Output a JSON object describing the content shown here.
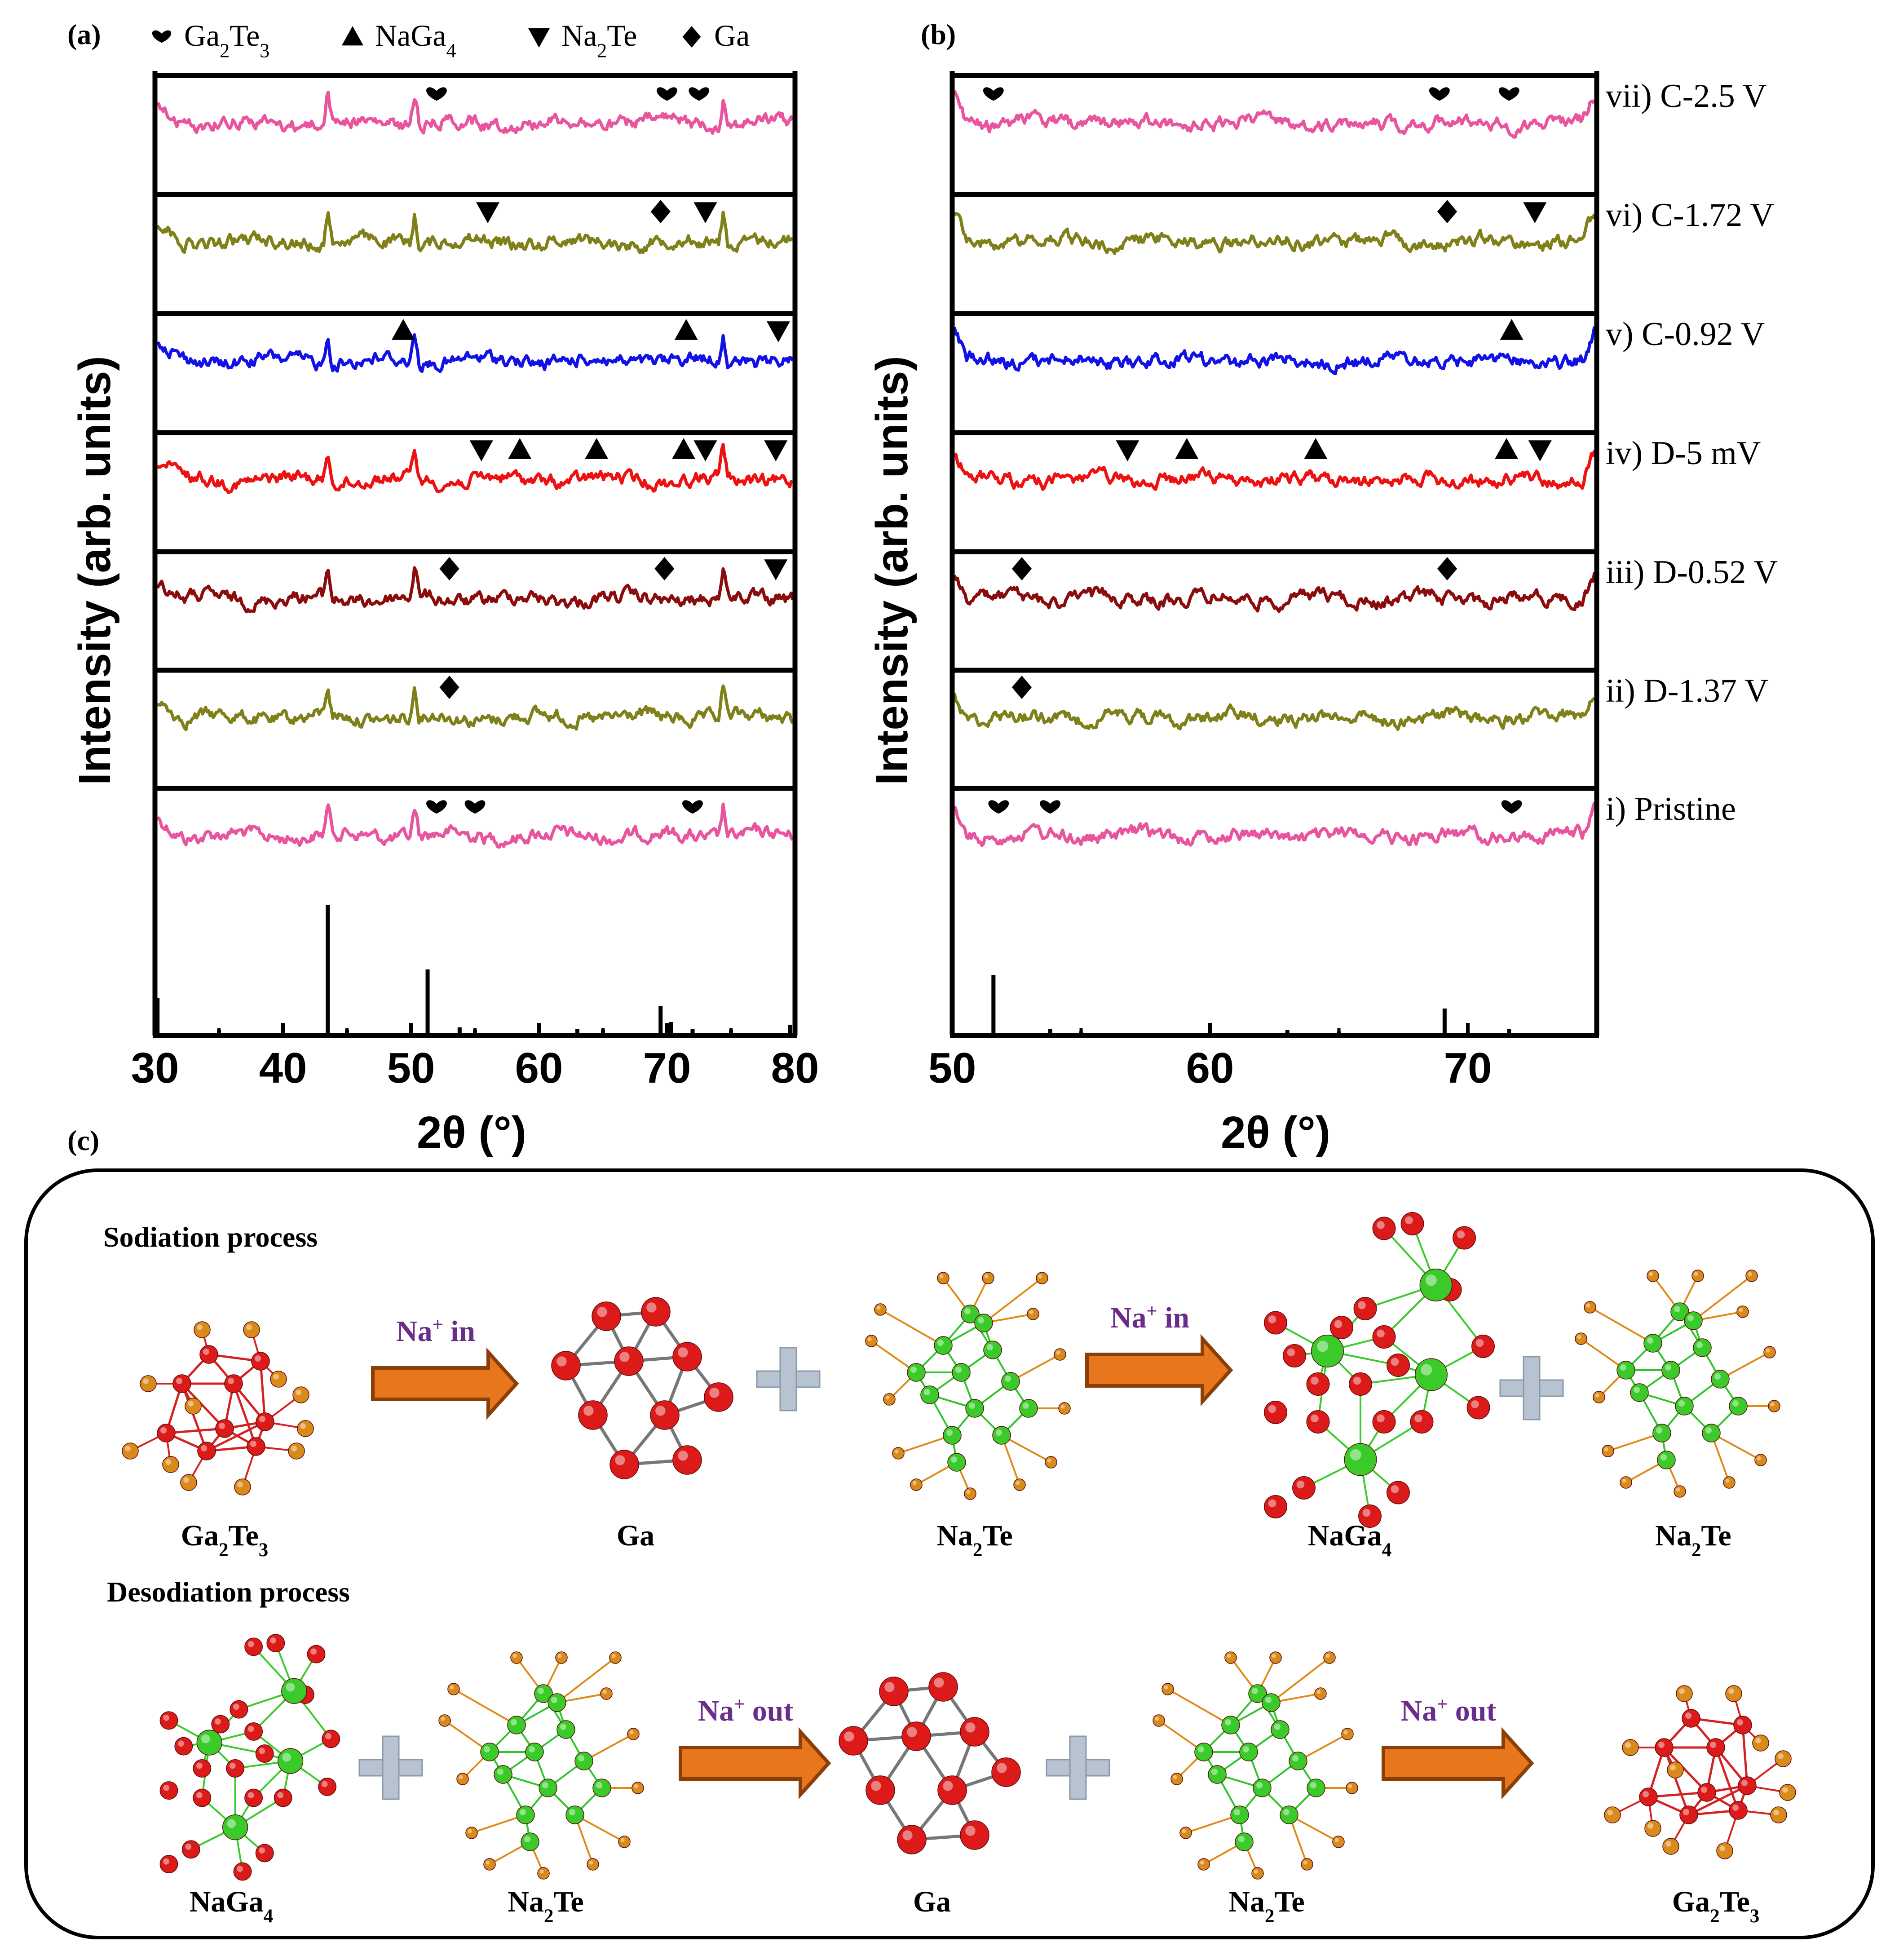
{
  "figure": {
    "panel_labels": {
      "a": "(a)",
      "b": "(b)",
      "c": "(c)"
    },
    "legend": [
      {
        "symbol": "heart",
        "base": "Ga",
        "sub1": "2",
        "mid": "Te",
        "sub2": "3"
      },
      {
        "symbol": "triangle-up",
        "base": "NaGa",
        "sub1": "4",
        "mid": "",
        "sub2": ""
      },
      {
        "symbol": "triangle-down",
        "base": "Na",
        "sub1": "2",
        "mid": "Te",
        "sub2": ""
      },
      {
        "symbol": "diamond",
        "base": "Ga",
        "sub1": "",
        "mid": "",
        "sub2": ""
      }
    ],
    "curve_colors": {
      "pristine": "#e8559e",
      "d137": "#80801a",
      "d052": "#8b0c0c",
      "d5mv": "#ee1111",
      "c092": "#1212e6",
      "c172": "#80801a",
      "c25": "#e8559e"
    },
    "colors": {
      "arrow": "#e8761c",
      "arrow_dark": "#8a3f08",
      "label_purple": "#6b2d8a",
      "plus": "#b7c3d1",
      "te_atom": "#d98a1a",
      "ga_atom": "#dd1a1a",
      "na_atom": "#3acb2a"
    }
  },
  "chart_data": [
    {
      "type": "line",
      "panel": "(a)",
      "title": "",
      "xlabel": "2θ (°)",
      "ylabel": "Intensity (arb. units)",
      "xlim": [
        30,
        80
      ],
      "xticks": [
        30,
        40,
        50,
        60,
        70,
        80
      ],
      "grid": false,
      "series": [
        {
          "name": "i) Pristine",
          "color_key": "pristine",
          "markers": [
            {
              "symbol": "heart",
              "x": 52
            },
            {
              "symbol": "heart",
              "x": 55
            },
            {
              "symbol": "heart",
              "x": 72
            }
          ]
        },
        {
          "name": "ii) D-1.37 V",
          "color_key": "d137",
          "markers": [
            {
              "symbol": "diamond",
              "x": 53
            }
          ]
        },
        {
          "name": "iii) D-0.52 V",
          "color_key": "d052",
          "markers": [
            {
              "symbol": "diamond",
              "x": 53
            },
            {
              "symbol": "diamond",
              "x": 69.8
            },
            {
              "symbol": "triangle-down",
              "x": 78.5
            }
          ]
        },
        {
          "name": "iv) D-5 mV",
          "color_key": "d5mv",
          "markers": [
            {
              "symbol": "triangle-down",
              "x": 55.5
            },
            {
              "symbol": "triangle-up",
              "x": 58.5
            },
            {
              "symbol": "triangle-up",
              "x": 64.5
            },
            {
              "symbol": "triangle-up",
              "x": 71.3
            },
            {
              "symbol": "triangle-down",
              "x": 73
            },
            {
              "symbol": "triangle-down",
              "x": 78.5
            }
          ]
        },
        {
          "name": "v) C-0.92 V",
          "color_key": "c092",
          "markers": [
            {
              "symbol": "triangle-up",
              "x": 49.4
            },
            {
              "symbol": "triangle-up",
              "x": 71.5
            },
            {
              "symbol": "triangle-down",
              "x": 78.7
            }
          ]
        },
        {
          "name": "vi) C-1.72 V",
          "color_key": "c172",
          "markers": [
            {
              "symbol": "triangle-down",
              "x": 56
            },
            {
              "symbol": "diamond",
              "x": 69.5
            },
            {
              "symbol": "triangle-down",
              "x": 73
            }
          ]
        },
        {
          "name": "vii) C-2.5 V",
          "color_key": "c25",
          "markers": [
            {
              "symbol": "heart",
              "x": 52
            },
            {
              "symbol": "heart",
              "x": 70
            },
            {
              "symbol": "heart",
              "x": 72.5
            }
          ]
        }
      ],
      "reference_peaks": [
        {
          "x": 30.2,
          "h": 0.28
        },
        {
          "x": 35,
          "h": 0.04
        },
        {
          "x": 40,
          "h": 0.06
        },
        {
          "x": 43.5,
          "h": 0.97
        },
        {
          "x": 45,
          "h": 0.04
        },
        {
          "x": 50,
          "h": 0.06
        },
        {
          "x": 51.3,
          "h": 0.49
        },
        {
          "x": 53.8,
          "h": 0.06
        },
        {
          "x": 55,
          "h": 0.04
        },
        {
          "x": 60,
          "h": 0.06
        },
        {
          "x": 63,
          "h": 0.05
        },
        {
          "x": 65,
          "h": 0.04
        },
        {
          "x": 69.5,
          "h": 0.22
        },
        {
          "x": 70.3,
          "h": 0.1
        },
        {
          "x": 72,
          "h": 0.05
        },
        {
          "x": 75,
          "h": 0.04
        },
        {
          "x": 79.6,
          "h": 0.08
        }
      ]
    },
    {
      "type": "line",
      "panel": "(b)",
      "title": "",
      "xlabel": "2θ (°)",
      "ylabel": "Intensity (arb. units)",
      "xlim": [
        50,
        75
      ],
      "xticks": [
        50,
        60,
        70
      ],
      "grid": false,
      "series": [
        {
          "name": "i) Pristine",
          "color_key": "pristine",
          "markers": [
            {
              "symbol": "heart",
              "x": 51.8
            },
            {
              "symbol": "heart",
              "x": 53.8
            },
            {
              "symbol": "heart",
              "x": 71.7
            }
          ]
        },
        {
          "name": "ii) D-1.37 V",
          "color_key": "d137",
          "markers": [
            {
              "symbol": "diamond",
              "x": 52.7
            }
          ]
        },
        {
          "name": "iii) D-0.52 V",
          "color_key": "d052",
          "markers": [
            {
              "symbol": "diamond",
              "x": 52.7
            },
            {
              "symbol": "diamond",
              "x": 69.2
            }
          ]
        },
        {
          "name": "iv) D-5 mV",
          "color_key": "d5mv",
          "markers": [
            {
              "symbol": "triangle-down",
              "x": 56.8
            },
            {
              "symbol": "triangle-up",
              "x": 59.1
            },
            {
              "symbol": "triangle-up",
              "x": 64.1
            },
            {
              "symbol": "triangle-up",
              "x": 71.5
            },
            {
              "symbol": "triangle-down",
              "x": 72.8
            }
          ]
        },
        {
          "name": "v) C-0.92 V",
          "color_key": "c092",
          "markers": [
            {
              "symbol": "triangle-up",
              "x": 71.7
            }
          ]
        },
        {
          "name": "vi) C-1.72 V",
          "color_key": "c172",
          "markers": [
            {
              "symbol": "diamond",
              "x": 69.2
            },
            {
              "symbol": "triangle-down",
              "x": 72.6
            }
          ]
        },
        {
          "name": "vii) C-2.5 V",
          "color_key": "c25",
          "markers": [
            {
              "symbol": "heart",
              "x": 51.6
            },
            {
              "symbol": "heart",
              "x": 68.9
            },
            {
              "symbol": "heart",
              "x": 71.6
            }
          ]
        }
      ],
      "reference_peaks": [
        {
          "x": 51.6,
          "h": 0.45
        },
        {
          "x": 53.8,
          "h": 0.05
        },
        {
          "x": 55,
          "h": 0.03
        },
        {
          "x": 60,
          "h": 0.03
        },
        {
          "x": 63,
          "h": 0.04
        },
        {
          "x": 65,
          "h": 0.03
        },
        {
          "x": 69.1,
          "h": 0.2
        },
        {
          "x": 71.6,
          "h": 0.05
        }
      ]
    }
  ],
  "scheme": {
    "sodiation": {
      "title": "Sodiation process",
      "arrow_label": "Na",
      "arrow_label_sup": "+",
      "arrow_label_tail": " in",
      "structures": [
        {
          "base": "Ga",
          "sub1": "2",
          "mid": "Te",
          "sub2": "3"
        },
        {
          "base": "Ga",
          "sub1": "",
          "mid": "",
          "sub2": ""
        },
        {
          "base": "Na",
          "sub1": "2",
          "mid": "Te",
          "sub2": ""
        },
        {
          "base": "NaGa",
          "sub1": "4",
          "mid": "",
          "sub2": ""
        },
        {
          "base": "Na",
          "sub1": "2",
          "mid": "Te",
          "sub2": ""
        }
      ]
    },
    "desodiation": {
      "title": "Desodiation process",
      "arrow_label": "Na",
      "arrow_label_sup": "+",
      "arrow_label_tail": " out",
      "structures": [
        {
          "base": "NaGa",
          "sub1": "4",
          "mid": "",
          "sub2": ""
        },
        {
          "base": "Na",
          "sub1": "2",
          "mid": "Te",
          "sub2": ""
        },
        {
          "base": "Ga",
          "sub1": "",
          "mid": "",
          "sub2": ""
        },
        {
          "base": "Na",
          "sub1": "2",
          "mid": "Te",
          "sub2": ""
        },
        {
          "base": "Ga",
          "sub1": "2",
          "mid": "Te",
          "sub2": "3"
        }
      ]
    }
  }
}
